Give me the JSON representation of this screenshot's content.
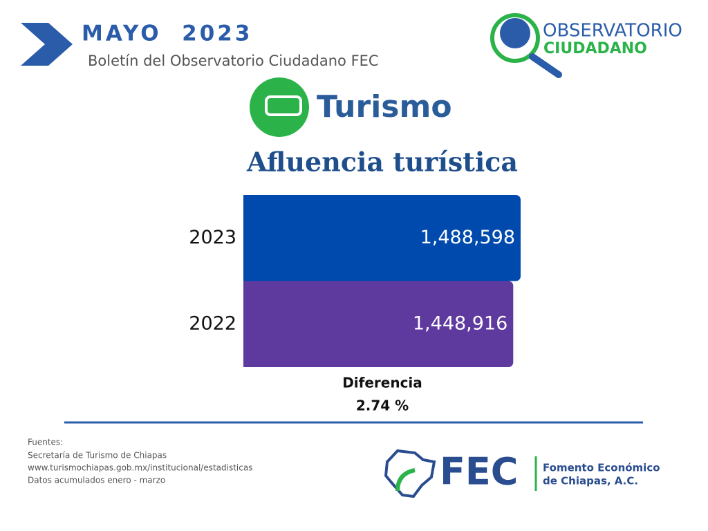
{
  "header": {
    "title": "MAYO  2023",
    "subtitle": "Boletín del Observatorio Ciudadano FEC"
  },
  "logo": {
    "line1": "OBSERVATORIO",
    "line2": "CIUDADANO"
  },
  "section": "Turismo",
  "chart_data": {
    "type": "bar",
    "orientation": "horizontal",
    "title": "Afluencia turística",
    "categories": [
      "2023",
      "2022"
    ],
    "values": [
      1488598,
      1448916
    ],
    "value_labels": [
      "1,488,598",
      "1,448,916"
    ],
    "colors": [
      "#004aad",
      "#5f3a9e"
    ]
  },
  "difference": {
    "label": "Diferencia",
    "value": "2.74 %"
  },
  "sources": [
    "Fuentes:",
    "Secretaría de Turismo de Chiapas",
    "www.turismochiapas.gob.mx/institucional/estadisticas",
    "Datos acumulados enero - marzo"
  ],
  "footer_logo": {
    "acronym": "FEC",
    "line1": "Fomento Económico",
    "line2": "de Chiapas, A.C."
  }
}
